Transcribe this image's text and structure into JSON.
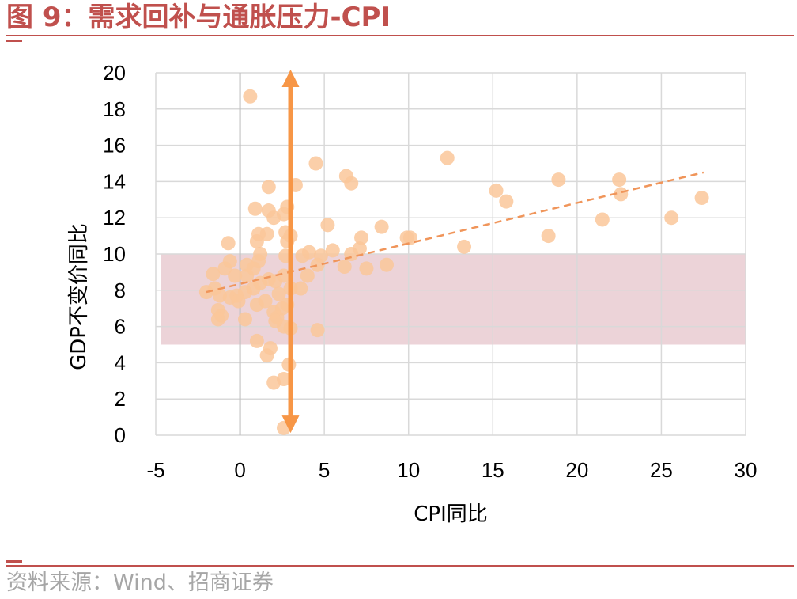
{
  "figure": {
    "title": "图 9：需求回补与通胀压力-CPI",
    "source": "资料来源：Wind、招商证券"
  },
  "colors": {
    "title_accent": "#c0504d",
    "point": "#fac79a",
    "trend": "#f0955a",
    "arrow": "#f79646",
    "band": "#ecd3d8",
    "grid": "#d9d9d9",
    "source_text": "#a6a6a6"
  },
  "chart_data": {
    "type": "scatter",
    "title": "",
    "xlabel": "CPI同比",
    "ylabel": "GDP不变价同比",
    "xlim": [
      -5,
      30
    ],
    "ylim": [
      0,
      20
    ],
    "xticks": [
      -5,
      0,
      5,
      10,
      15,
      20,
      25,
      30
    ],
    "yticks": [
      0,
      2,
      4,
      6,
      8,
      10,
      12,
      14,
      16,
      18,
      20
    ],
    "grid": true,
    "legend": "none",
    "band": {
      "y_from": 5,
      "y_to": 10
    },
    "vertical_arrow": {
      "x": 3,
      "y_from": 0.3,
      "y_to": 20
    },
    "trendline": {
      "x": [
        -2,
        27.5
      ],
      "y": [
        7.9,
        14.5
      ],
      "style": "dashed"
    },
    "series": [
      {
        "points": [
          [
            0.6,
            18.7
          ],
          [
            12.3,
            15.3
          ],
          [
            4.5,
            15.0
          ],
          [
            6.3,
            14.3
          ],
          [
            6.6,
            13.9
          ],
          [
            3.3,
            13.8
          ],
          [
            1.7,
            13.7
          ],
          [
            18.9,
            14.1
          ],
          [
            22.5,
            14.1
          ],
          [
            15.2,
            13.5
          ],
          [
            15.8,
            12.9
          ],
          [
            22.6,
            13.3
          ],
          [
            27.4,
            13.1
          ],
          [
            21.5,
            11.9
          ],
          [
            25.6,
            12.0
          ],
          [
            18.3,
            11.0
          ],
          [
            13.3,
            10.4
          ],
          [
            10.1,
            10.9
          ],
          [
            9.9,
            10.9
          ],
          [
            8.4,
            11.5
          ],
          [
            7.2,
            10.9
          ],
          [
            5.2,
            11.6
          ],
          [
            0.9,
            12.5
          ],
          [
            1.7,
            12.4
          ],
          [
            2.0,
            12.0
          ],
          [
            2.6,
            12.2
          ],
          [
            2.8,
            12.6
          ],
          [
            3.0,
            11.0
          ],
          [
            2.7,
            11.2
          ],
          [
            1.1,
            11.1
          ],
          [
            1.0,
            10.7
          ],
          [
            1.6,
            11.1
          ],
          [
            -0.7,
            10.6
          ],
          [
            2.8,
            10.7
          ],
          [
            3.7,
            9.9
          ],
          [
            4.1,
            10.1
          ],
          [
            4.8,
            9.9
          ],
          [
            5.5,
            10.2
          ],
          [
            6.6,
            10.0
          ],
          [
            7.1,
            10.3
          ],
          [
            1.2,
            10.0
          ],
          [
            2.7,
            9.9
          ],
          [
            -0.6,
            9.6
          ],
          [
            0.4,
            9.4
          ],
          [
            1.1,
            9.6
          ],
          [
            -1.6,
            8.9
          ],
          [
            -0.9,
            9.2
          ],
          [
            -0.3,
            8.8
          ],
          [
            0.4,
            8.8
          ],
          [
            0.8,
            9.2
          ],
          [
            1.7,
            8.6
          ],
          [
            2.1,
            8.5
          ],
          [
            2.6,
            8.8
          ],
          [
            3.0,
            8.1
          ],
          [
            4.0,
            8.8
          ],
          [
            4.6,
            9.4
          ],
          [
            6.2,
            9.3
          ],
          [
            7.5,
            9.2
          ],
          [
            8.7,
            9.4
          ],
          [
            -2.0,
            7.9
          ],
          [
            -1.5,
            8.1
          ],
          [
            -1.2,
            7.7
          ],
          [
            -0.6,
            7.6
          ],
          [
            -0.2,
            7.7
          ],
          [
            0.3,
            7.9
          ],
          [
            0.8,
            8.1
          ],
          [
            1.2,
            8.4
          ],
          [
            2.3,
            7.8
          ],
          [
            2.8,
            7.2
          ],
          [
            3.6,
            8.1
          ],
          [
            -1.3,
            6.9
          ],
          [
            -1.1,
            6.6
          ],
          [
            -1.3,
            6.4
          ],
          [
            -0.1,
            7.4
          ],
          [
            1.0,
            7.2
          ],
          [
            1.5,
            7.4
          ],
          [
            2.0,
            6.8
          ],
          [
            2.2,
            6.5
          ],
          [
            2.5,
            7.0
          ],
          [
            2.1,
            6.3
          ],
          [
            2.6,
            6.0
          ],
          [
            3.0,
            5.9
          ],
          [
            0.3,
            6.4
          ],
          [
            4.6,
            5.8
          ],
          [
            1.0,
            5.2
          ],
          [
            1.6,
            4.4
          ],
          [
            1.8,
            4.8
          ],
          [
            2.9,
            3.9
          ],
          [
            2.0,
            2.9
          ],
          [
            2.6,
            3.1
          ],
          [
            2.6,
            0.4
          ]
        ]
      }
    ]
  }
}
